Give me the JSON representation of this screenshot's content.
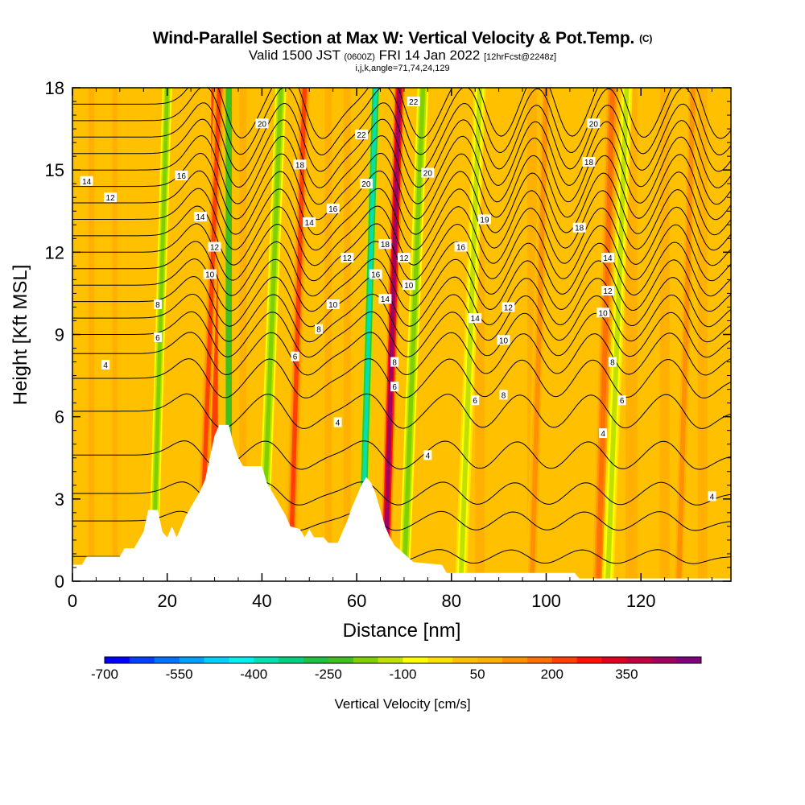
{
  "title": {
    "main": "Wind-Parallel Section at Max W: Vertical Velocity & Pot.Temp.",
    "copyright": "(C)",
    "valid_prefix": "Valid 1500 JST",
    "valid_utc": "(0600Z)",
    "valid_date": "FRI 14 Jan 2022",
    "forecast": "[12hrFcst@2248z]",
    "indices": "i,j,k,angle=71,74,24,129"
  },
  "chart_data": {
    "type": "heatmap",
    "xlabel": "Distance [nm]",
    "ylabel": "Height [Kft MSL]",
    "xlim": [
      0,
      139
    ],
    "ylim": [
      0,
      18
    ],
    "x_ticks": [
      0,
      20,
      40,
      60,
      80,
      100,
      120
    ],
    "y_ticks": [
      0,
      3,
      6,
      9,
      12,
      15,
      18
    ],
    "colorbar": {
      "label": "Vertical Velocity [cm/s]",
      "min": -700,
      "max": 450,
      "step": 50,
      "tick_values": [
        -700,
        -550,
        -400,
        -250,
        -100,
        50,
        200,
        350
      ],
      "colors": [
        "#0000ff",
        "#0040ff",
        "#0070ff",
        "#00a0ff",
        "#00d0ff",
        "#00f0f0",
        "#00e0b0",
        "#00d080",
        "#20c040",
        "#40c020",
        "#80d000",
        "#c0e000",
        "#ffff00",
        "#ffe000",
        "#ffc000",
        "#ffb000",
        "#ff9000",
        "#ff7000",
        "#ff4000",
        "#ff1000",
        "#e00020",
        "#c00040",
        "#a00060",
        "#800080"
      ]
    },
    "terrain_kft": [
      [
        0,
        0.6
      ],
      [
        2,
        0.6
      ],
      [
        3,
        0.9
      ],
      [
        10,
        0.9
      ],
      [
        11,
        1.2
      ],
      [
        13,
        1.2
      ],
      [
        15,
        1.8
      ],
      [
        16,
        2.6
      ],
      [
        18,
        2.6
      ],
      [
        19,
        1.8
      ],
      [
        20,
        1.6
      ],
      [
        21,
        2.0
      ],
      [
        22,
        1.6
      ],
      [
        23,
        2.0
      ],
      [
        24,
        2.4
      ],
      [
        25,
        2.7
      ],
      [
        26,
        3.0
      ],
      [
        27,
        3.3
      ],
      [
        28,
        3.7
      ],
      [
        29,
        4.5
      ],
      [
        30,
        5.3
      ],
      [
        31,
        5.7
      ],
      [
        33,
        5.7
      ],
      [
        34,
        5.0
      ],
      [
        35,
        4.5
      ],
      [
        36,
        4.2
      ],
      [
        38,
        4.2
      ],
      [
        40,
        4.2
      ],
      [
        41,
        3.6
      ],
      [
        42,
        3.3
      ],
      [
        43,
        3.0
      ],
      [
        44,
        2.7
      ],
      [
        45,
        2.4
      ],
      [
        46,
        2.0
      ],
      [
        48,
        1.9
      ],
      [
        49,
        1.6
      ],
      [
        50,
        1.9
      ],
      [
        51,
        1.6
      ],
      [
        53,
        1.6
      ],
      [
        54,
        1.4
      ],
      [
        56,
        1.4
      ],
      [
        57,
        1.8
      ],
      [
        58,
        2.2
      ],
      [
        59,
        2.7
      ],
      [
        60,
        3.1
      ],
      [
        61,
        3.5
      ],
      [
        62,
        3.8
      ],
      [
        63,
        3.6
      ],
      [
        64,
        3.2
      ],
      [
        65,
        2.6
      ],
      [
        66,
        2.0
      ],
      [
        67,
        1.6
      ],
      [
        68,
        1.3
      ],
      [
        70,
        1.0
      ],
      [
        72,
        0.7
      ],
      [
        78,
        0.6
      ],
      [
        79,
        0.3
      ],
      [
        106,
        0.3
      ],
      [
        107,
        0.1
      ],
      [
        139,
        0.1
      ]
    ],
    "w_bands": [
      {
        "x": 4,
        "w": 1.2,
        "value": 50
      },
      {
        "x": 9,
        "w": 1.0,
        "value": 80
      },
      {
        "x": 30,
        "w": 1.4,
        "value": 230
      },
      {
        "x": 33,
        "w": 1.3,
        "value": -220
      },
      {
        "x": 36,
        "w": 1.5,
        "value": 80
      },
      {
        "x": 54,
        "w": 1.5,
        "value": 80
      },
      {
        "x": 58,
        "w": 1.5,
        "value": 60
      },
      {
        "x": 86,
        "w": 2.0,
        "value": 80
      },
      {
        "x": 97,
        "w": 2.0,
        "value": 60
      },
      {
        "x": 118,
        "w": 2.5,
        "value": 60
      },
      {
        "x": 125,
        "w": 2.0,
        "value": 50
      },
      {
        "x": 133,
        "w": 2.0,
        "value": 60
      }
    ],
    "w_waves": [
      {
        "x0": 17,
        "x1": 20,
        "w": 2.0,
        "value": -170
      },
      {
        "x0": 27,
        "x1": 31,
        "w": 2.2,
        "value": 200
      },
      {
        "x0": 40,
        "x1": 44,
        "w": 2.3,
        "value": -170
      },
      {
        "x0": 46,
        "x1": 49,
        "w": 2.3,
        "value": 210
      },
      {
        "x0": 61,
        "x1": 64,
        "w": 2.0,
        "value": -380
      },
      {
        "x0": 66,
        "x1": 69,
        "w": 2.2,
        "value": 410
      },
      {
        "x0": 70,
        "x1": 74,
        "w": 2.3,
        "value": -190
      },
      {
        "x0": 82,
        "x1": 86,
        "w": 2.5,
        "value": -120
      },
      {
        "x0": 97,
        "x1": 100,
        "w": 2.5,
        "value": 110
      },
      {
        "x0": 111,
        "x1": 114,
        "w": 2.5,
        "value": 160
      },
      {
        "x0": 113,
        "x1": 117,
        "w": 2.5,
        "value": -120
      },
      {
        "x0": 128,
        "x1": 131,
        "w": 2.5,
        "value": 130
      }
    ],
    "theta_contours": {
      "levels_kft": [
        0.9,
        2.2,
        3.2,
        4.6,
        6.2,
        7.4,
        8.3,
        9.0,
        9.6,
        10.2,
        10.8,
        11.4,
        12.0,
        12.6,
        13.2,
        13.8,
        14.4,
        15.0,
        15.6,
        16.2,
        16.8,
        17.4
      ],
      "labels": [
        {
          "x": 7,
          "y": 7.9,
          "text": "4"
        },
        {
          "x": 18,
          "y": 8.9,
          "text": "6"
        },
        {
          "x": 18,
          "y": 10.1,
          "text": "8"
        },
        {
          "x": 29,
          "y": 11.2,
          "text": "10"
        },
        {
          "x": 30,
          "y": 12.2,
          "text": "12"
        },
        {
          "x": 27,
          "y": 13.3,
          "text": "14"
        },
        {
          "x": 23,
          "y": 14.8,
          "text": "16"
        },
        {
          "x": 8,
          "y": 14.0,
          "text": "12"
        },
        {
          "x": 3,
          "y": 14.6,
          "text": "14"
        },
        {
          "x": 40,
          "y": 16.7,
          "text": "20"
        },
        {
          "x": 48,
          "y": 15.2,
          "text": "18"
        },
        {
          "x": 50,
          "y": 13.1,
          "text": "14"
        },
        {
          "x": 55,
          "y": 13.6,
          "text": "16"
        },
        {
          "x": 58,
          "y": 11.8,
          "text": "12"
        },
        {
          "x": 55,
          "y": 10.1,
          "text": "10"
        },
        {
          "x": 52,
          "y": 9.2,
          "text": "8"
        },
        {
          "x": 47,
          "y": 8.2,
          "text": "6"
        },
        {
          "x": 56,
          "y": 5.8,
          "text": "4"
        },
        {
          "x": 61,
          "y": 16.3,
          "text": "22"
        },
        {
          "x": 62,
          "y": 14.5,
          "text": "20"
        },
        {
          "x": 66,
          "y": 12.3,
          "text": "18"
        },
        {
          "x": 64,
          "y": 11.2,
          "text": "16"
        },
        {
          "x": 66,
          "y": 10.3,
          "text": "14"
        },
        {
          "x": 70,
          "y": 11.8,
          "text": "12"
        },
        {
          "x": 71,
          "y": 10.8,
          "text": "10"
        },
        {
          "x": 68,
          "y": 8.0,
          "text": "8"
        },
        {
          "x": 68,
          "y": 7.1,
          "text": "6"
        },
        {
          "x": 72,
          "y": 17.5,
          "text": "22"
        },
        {
          "x": 75,
          "y": 14.9,
          "text": "20"
        },
        {
          "x": 75,
          "y": 4.6,
          "text": "4"
        },
        {
          "x": 87,
          "y": 13.2,
          "text": "19"
        },
        {
          "x": 82,
          "y": 12.2,
          "text": "16"
        },
        {
          "x": 85,
          "y": 9.6,
          "text": "14"
        },
        {
          "x": 92,
          "y": 10.0,
          "text": "12"
        },
        {
          "x": 91,
          "y": 8.8,
          "text": "10"
        },
        {
          "x": 91,
          "y": 6.8,
          "text": "8"
        },
        {
          "x": 85,
          "y": 6.6,
          "text": "6"
        },
        {
          "x": 110,
          "y": 16.7,
          "text": "20"
        },
        {
          "x": 109,
          "y": 15.3,
          "text": "18"
        },
        {
          "x": 107,
          "y": 12.9,
          "text": "18"
        },
        {
          "x": 113,
          "y": 11.8,
          "text": "14"
        },
        {
          "x": 113,
          "y": 10.6,
          "text": "12"
        },
        {
          "x": 112,
          "y": 9.8,
          "text": "10"
        },
        {
          "x": 114,
          "y": 8.0,
          "text": "8"
        },
        {
          "x": 116,
          "y": 6.6,
          "text": "6"
        },
        {
          "x": 112,
          "y": 5.4,
          "text": "4"
        },
        {
          "x": 135,
          "y": 3.1,
          "text": "4"
        }
      ]
    }
  }
}
